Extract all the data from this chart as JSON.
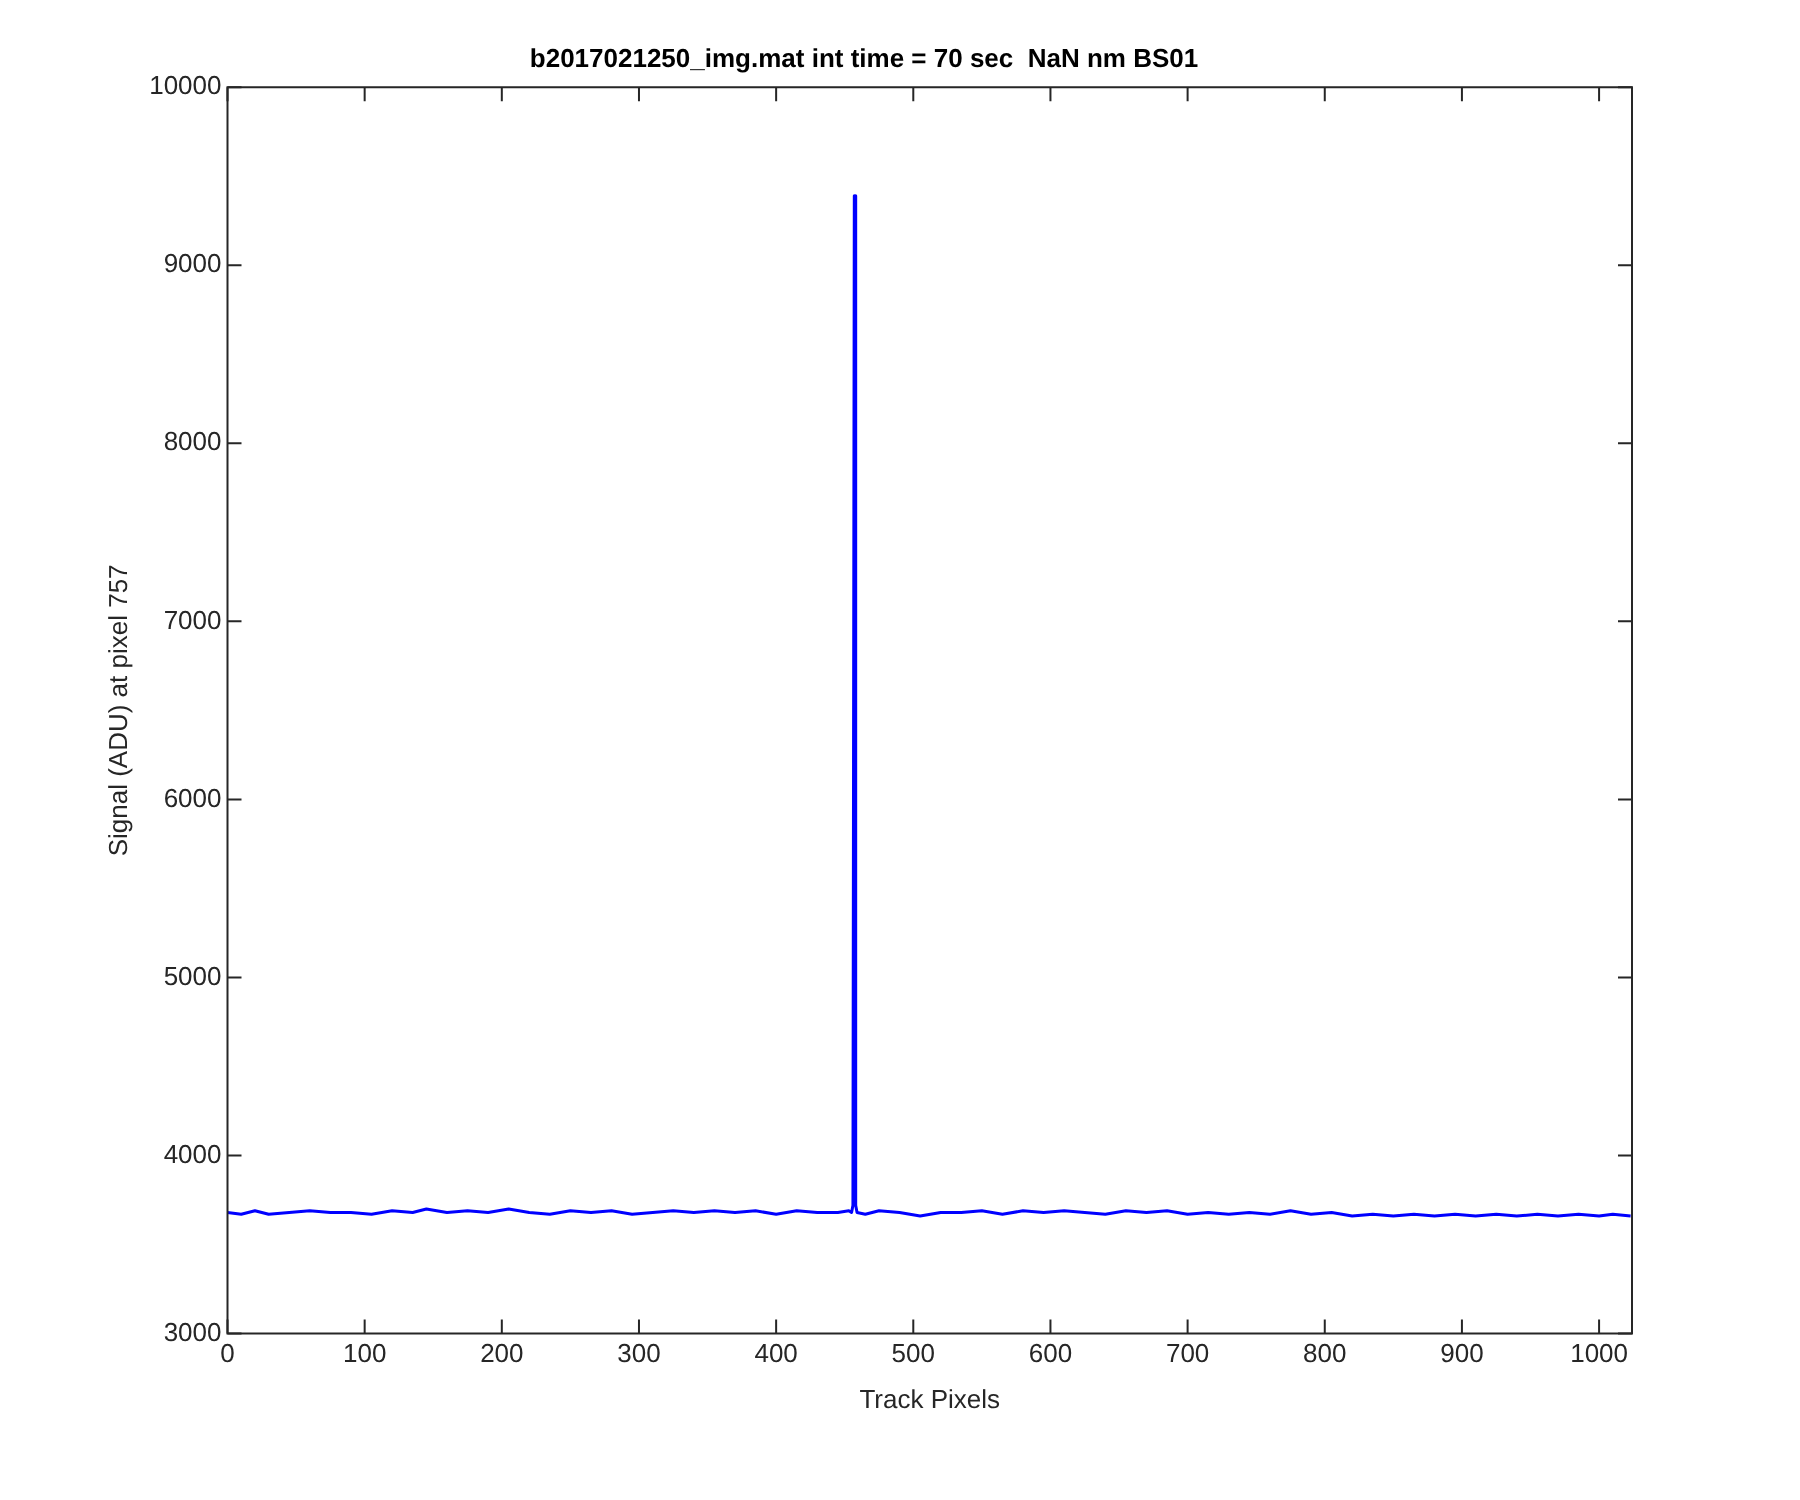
{
  "chart_data": {
    "type": "line",
    "title": "b2017021250_img.mat int time = 70 sec  NaN nm BS01",
    "xlabel": "Track Pixels",
    "ylabel": "Signal (ADU) at pixel 757",
    "xlim": [
      0,
      1024
    ],
    "xticks": [
      0,
      100,
      200,
      300,
      400,
      500,
      600,
      700,
      800,
      900,
      1000
    ],
    "ylim": [
      3000,
      10000
    ],
    "yticks": [
      3000,
      4000,
      5000,
      6000,
      7000,
      8000,
      9000,
      10000
    ],
    "grid": false,
    "legend": false,
    "marker": "none",
    "line_style": "solid",
    "series": [
      {
        "color": "#0000ff",
        "x": [
          0,
          10,
          20,
          30,
          45,
          60,
          75,
          90,
          105,
          120,
          135,
          145,
          160,
          175,
          190,
          205,
          220,
          235,
          250,
          265,
          280,
          295,
          310,
          325,
          340,
          355,
          370,
          385,
          400,
          415,
          430,
          445,
          453,
          455,
          456,
          457,
          458,
          459,
          465,
          475,
          490,
          505,
          520,
          535,
          550,
          565,
          580,
          595,
          610,
          625,
          640,
          655,
          670,
          685,
          700,
          715,
          730,
          745,
          760,
          775,
          790,
          805,
          820,
          835,
          850,
          865,
          880,
          895,
          910,
          925,
          940,
          955,
          970,
          985,
          1000,
          1010,
          1023
        ],
        "values": [
          3680,
          3670,
          3690,
          3670,
          3680,
          3690,
          3680,
          3680,
          3670,
          3690,
          3680,
          3700,
          3680,
          3690,
          3680,
          3700,
          3680,
          3670,
          3690,
          3680,
          3690,
          3670,
          3680,
          3690,
          3680,
          3690,
          3680,
          3690,
          3670,
          3690,
          3680,
          3680,
          3690,
          3680,
          3720,
          9390,
          3720,
          3680,
          3670,
          3690,
          3680,
          3660,
          3680,
          3680,
          3690,
          3670,
          3690,
          3680,
          3690,
          3680,
          3670,
          3690,
          3680,
          3690,
          3670,
          3680,
          3670,
          3680,
          3670,
          3690,
          3670,
          3680,
          3660,
          3670,
          3660,
          3670,
          3660,
          3670,
          3660,
          3670,
          3660,
          3670,
          3660,
          3670,
          3660,
          3670,
          3660
        ]
      }
    ]
  }
}
